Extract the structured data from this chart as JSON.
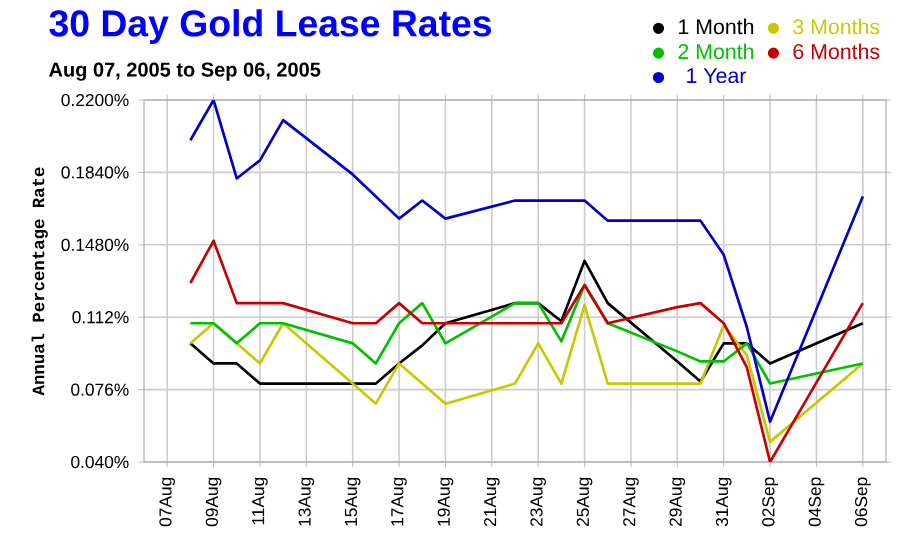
{
  "chart_data": {
    "type": "line",
    "title": "30 Day Gold Lease Rates",
    "subtitle": "Aug 07, 2005 to Sep 06, 2005",
    "ylabel": "Annual Percentage Rate",
    "x": [
      "2005-08-08",
      "2005-08-09",
      "2005-08-10",
      "2005-08-11",
      "2005-08-12",
      "2005-08-15",
      "2005-08-16",
      "2005-08-17",
      "2005-08-18",
      "2005-08-19",
      "2005-08-22",
      "2005-08-23",
      "2005-08-24",
      "2005-08-25",
      "2005-08-26",
      "2005-08-29",
      "2005-08-30",
      "2005-08-31",
      "2005-09-01",
      "2005-09-02",
      "2005-09-06"
    ],
    "series": [
      {
        "name": "1 Month",
        "color": "#000000",
        "values": [
          0.099,
          0.089,
          0.089,
          0.079,
          0.079,
          0.079,
          0.079,
          0.089,
          0.098,
          0.109,
          0.119,
          0.119,
          0.11,
          0.14,
          0.119,
          0.09,
          0.08,
          0.099,
          0.099,
          0.089,
          0.109
        ]
      },
      {
        "name": "3 Months",
        "color": "#c8c800",
        "values": [
          0.099,
          0.109,
          0.099,
          0.089,
          0.109,
          0.079,
          0.069,
          0.089,
          0.079,
          0.069,
          0.079,
          0.099,
          0.079,
          0.118,
          0.079,
          0.079,
          0.079,
          0.108,
          0.093,
          0.05,
          0.089
        ]
      },
      {
        "name": "2 Month",
        "color": "#00c000",
        "values": [
          0.109,
          0.109,
          0.099,
          0.109,
          0.109,
          0.099,
          0.089,
          0.109,
          0.119,
          0.099,
          0.119,
          0.119,
          0.1,
          0.128,
          0.109,
          0.095,
          0.09,
          0.09,
          0.099,
          0.079,
          0.089
        ]
      },
      {
        "name": "6 Months",
        "color": "#c80000",
        "values": [
          0.129,
          0.15,
          0.119,
          0.119,
          0.119,
          0.109,
          0.109,
          0.119,
          0.109,
          0.109,
          0.109,
          0.109,
          0.109,
          0.128,
          0.109,
          0.117,
          0.119,
          0.109,
          0.087,
          0.04,
          0.119
        ]
      },
      {
        "name": "1 Year",
        "color": "#0000c8",
        "values": [
          0.2,
          0.22,
          0.181,
          0.19,
          0.21,
          0.183,
          0.172,
          0.161,
          0.17,
          0.161,
          0.17,
          0.17,
          0.17,
          0.17,
          0.16,
          0.16,
          0.16,
          0.143,
          0.107,
          0.06,
          0.172
        ]
      }
    ],
    "xlim": [
      "2005-08-06",
      "2005-09-07"
    ],
    "xticks": [
      {
        "value": "2005-08-07",
        "label": "07Aug"
      },
      {
        "value": "2005-08-09",
        "label": "09Aug"
      },
      {
        "value": "2005-08-11",
        "label": "11Aug"
      },
      {
        "value": "2005-08-13",
        "label": "13Aug"
      },
      {
        "value": "2005-08-15",
        "label": "15Aug"
      },
      {
        "value": "2005-08-17",
        "label": "17Aug"
      },
      {
        "value": "2005-08-19",
        "label": "19Aug"
      },
      {
        "value": "2005-08-21",
        "label": "21Aug"
      },
      {
        "value": "2005-08-23",
        "label": "23Aug"
      },
      {
        "value": "2005-08-25",
        "label": "25Aug"
      },
      {
        "value": "2005-08-27",
        "label": "27Aug"
      },
      {
        "value": "2005-08-29",
        "label": "29Aug"
      },
      {
        "value": "2005-08-31",
        "label": "31Aug"
      },
      {
        "value": "2005-09-02",
        "label": "02Sep"
      },
      {
        "value": "2005-09-04",
        "label": "04Sep"
      },
      {
        "value": "2005-09-06",
        "label": "06Sep"
      }
    ],
    "ylim": [
      0.04,
      0.22
    ],
    "yticks": [
      {
        "value": 0.04,
        "label": "0.040%"
      },
      {
        "value": 0.076,
        "label": "0.076%"
      },
      {
        "value": 0.112,
        "label": "0.112%"
      },
      {
        "value": 0.148,
        "label": "0.1480%"
      },
      {
        "value": 0.184,
        "label": "0.1840%"
      },
      {
        "value": 0.22,
        "label": "0.2200%"
      }
    ],
    "grid": true,
    "legend": "top right"
  }
}
